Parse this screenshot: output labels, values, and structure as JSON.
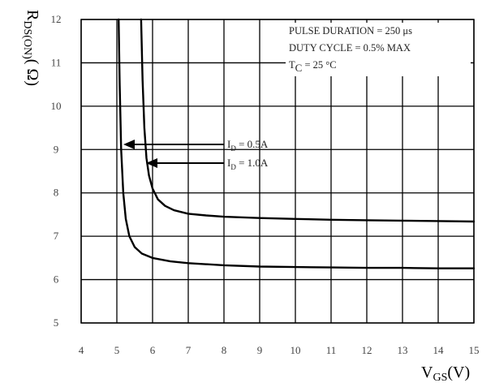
{
  "chart_data": {
    "type": "line",
    "title": "",
    "xlabel": "V",
    "xlabel_sub": "GS",
    "xlabel_unit": "(V)",
    "ylabel": "R",
    "ylabel_sub": "DS(ON)",
    "ylabel_unit": "( Ω)",
    "xlim": [
      4,
      15
    ],
    "ylim": [
      5,
      12
    ],
    "x_ticks": [
      4,
      5,
      6,
      7,
      8,
      9,
      10,
      11,
      12,
      13,
      14,
      15
    ],
    "y_ticks": [
      5,
      6,
      7,
      8,
      9,
      10,
      11,
      12
    ],
    "grid": true,
    "legend": "none",
    "conditions": [
      "PULSE DURATION = 250 μs",
      "DUTY CYCLE = 0.5% MAX"
    ],
    "temperature": {
      "prefix": "T",
      "sub": "C",
      "value": " = 25 °C"
    },
    "series": [
      {
        "label_prefix": "I",
        "label_sub": "D",
        "label_value": " = 0.5A",
        "color": "#000000",
        "x": [
          5.05,
          5.08,
          5.12,
          5.18,
          5.25,
          5.35,
          5.5,
          5.7,
          6.0,
          6.5,
          7.0,
          8.0,
          9.0,
          10.0,
          11.0,
          12.0,
          13.0,
          14.0,
          15.0
        ],
        "y": [
          12.0,
          10.5,
          9.0,
          8.0,
          7.4,
          7.0,
          6.75,
          6.6,
          6.5,
          6.42,
          6.38,
          6.33,
          6.3,
          6.29,
          6.28,
          6.27,
          6.27,
          6.26,
          6.26
        ]
      },
      {
        "label_prefix": "I",
        "label_sub": "D",
        "label_value": " = 1.0A",
        "color": "#000000",
        "x": [
          5.68,
          5.72,
          5.77,
          5.83,
          5.9,
          6.0,
          6.15,
          6.35,
          6.6,
          7.0,
          7.5,
          8.0,
          9.0,
          10.0,
          11.0,
          12.0,
          13.0,
          14.0,
          15.0
        ],
        "y": [
          12.0,
          10.6,
          9.5,
          8.8,
          8.4,
          8.1,
          7.85,
          7.7,
          7.6,
          7.52,
          7.48,
          7.45,
          7.42,
          7.4,
          7.38,
          7.37,
          7.36,
          7.35,
          7.34
        ]
      }
    ]
  }
}
